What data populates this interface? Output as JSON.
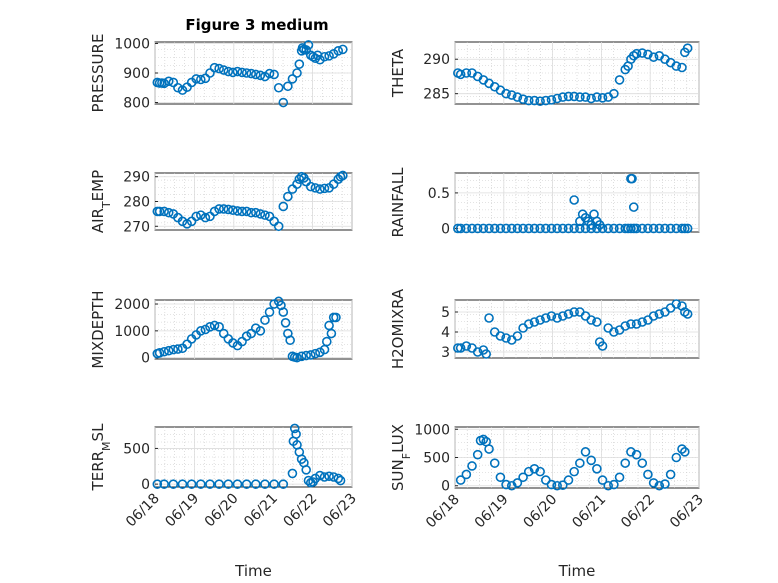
{
  "figure": {
    "title": "Figure 3 medium"
  },
  "chart_data": [
    {
      "type": "scatter",
      "ylabel": "PRESSURE",
      "ylim": [
        795,
        1005
      ],
      "yticks": [
        800,
        900,
        1000
      ],
      "ytick_labels": [
        "800",
        "900",
        "1000"
      ],
      "xlim": [
        0,
        4.3
      ],
      "xtick_labels": [],
      "x": [
        0.05,
        0.1,
        0.15,
        0.2,
        0.3,
        0.4,
        0.5,
        0.6,
        0.7,
        0.8,
        0.9,
        1.0,
        1.1,
        1.2,
        1.3,
        1.4,
        1.5,
        1.6,
        1.7,
        1.8,
        1.9,
        2.0,
        2.1,
        2.2,
        2.3,
        2.4,
        2.5,
        2.6,
        2.7,
        2.8,
        2.9,
        3.0,
        3.1,
        3.15,
        3.2,
        3.22,
        3.25,
        3.3,
        3.35,
        3.4,
        3.45,
        3.5,
        3.55,
        3.6,
        3.7,
        3.8,
        3.9,
        4.0,
        4.1
      ],
      "y": [
        868,
        866,
        866,
        865,
        872,
        868,
        850,
        842,
        852,
        868,
        880,
        878,
        882,
        900,
        918,
        915,
        910,
        905,
        902,
        905,
        902,
        900,
        898,
        895,
        892,
        888,
        898,
        895,
        850,
        800,
        855,
        880,
        900,
        930,
        975,
        985,
        980,
        978,
        995,
        960,
        955,
        950,
        960,
        945,
        955,
        958,
        965,
        975,
        980
      ]
    },
    {
      "type": "scatter",
      "ylabel": "THETA",
      "ylim": [
        283.5,
        292.5
      ],
      "yticks": [
        285,
        290
      ],
      "ytick_labels": [
        "285",
        "290"
      ],
      "xlim": [
        0,
        4.3
      ],
      "xtick_labels": [],
      "x": [
        0.05,
        0.1,
        0.2,
        0.3,
        0.4,
        0.5,
        0.6,
        0.7,
        0.8,
        0.9,
        1.0,
        1.1,
        1.2,
        1.3,
        1.4,
        1.5,
        1.6,
        1.7,
        1.8,
        1.9,
        2.0,
        2.1,
        2.2,
        2.3,
        2.4,
        2.5,
        2.6,
        2.7,
        2.8,
        2.9,
        3.0,
        3.05,
        3.1,
        3.15,
        3.2,
        3.3,
        3.4,
        3.5,
        3.6,
        3.7,
        3.8,
        3.9,
        4.0,
        4.05,
        4.1
      ],
      "y": [
        288,
        287.8,
        288,
        288,
        287.5,
        287,
        286.5,
        286,
        285.5,
        285,
        284.8,
        284.5,
        284.2,
        284,
        284,
        283.9,
        284,
        284.1,
        284.3,
        284.5,
        284.6,
        284.6,
        284.5,
        284.5,
        284.3,
        284.5,
        284.4,
        284.5,
        285,
        287,
        288.5,
        289,
        290,
        290.5,
        290.8,
        290.9,
        290.7,
        290.3,
        290.5,
        290,
        289.5,
        289,
        288.8,
        291,
        291.6
      ]
    },
    {
      "type": "scatter",
      "ylabel": "AIR_TEMP",
      "ylim": [
        268.5,
        291.5
      ],
      "yticks": [
        270,
        280,
        290
      ],
      "ytick_labels": [
        "270",
        "280",
        "290"
      ],
      "xlim": [
        0,
        4.3
      ],
      "xtick_labels": [],
      "x": [
        0.05,
        0.1,
        0.2,
        0.3,
        0.4,
        0.5,
        0.6,
        0.7,
        0.8,
        0.9,
        1.0,
        1.1,
        1.2,
        1.3,
        1.4,
        1.5,
        1.6,
        1.7,
        1.8,
        1.9,
        2.0,
        2.1,
        2.2,
        2.3,
        2.4,
        2.5,
        2.6,
        2.7,
        2.8,
        2.9,
        3.0,
        3.1,
        3.15,
        3.2,
        3.25,
        3.3,
        3.4,
        3.5,
        3.6,
        3.7,
        3.8,
        3.9,
        4.0,
        4.05,
        4.1
      ],
      "y": [
        276,
        276,
        276,
        275.5,
        275,
        273.5,
        272,
        271,
        272,
        274,
        274.5,
        273.5,
        274,
        276,
        277,
        277,
        276.8,
        276.5,
        276.2,
        276,
        276,
        275.5,
        275.5,
        275,
        274.5,
        274,
        272,
        270,
        278,
        282,
        285,
        287,
        289,
        290,
        289.5,
        288,
        286,
        285.5,
        285,
        285.3,
        285.5,
        287,
        289,
        290,
        290.5
      ]
    },
    {
      "type": "scatter",
      "ylabel": "RAINFALL",
      "ylim": [
        -0.05,
        0.78
      ],
      "yticks": [
        0,
        0.5
      ],
      "ytick_labels": [
        "0",
        "0.5"
      ],
      "xlim": [
        0,
        4.3
      ],
      "xtick_labels": [],
      "x": [
        0.05,
        0.1,
        0.2,
        0.3,
        0.4,
        0.5,
        0.6,
        0.7,
        0.8,
        0.9,
        1.0,
        1.1,
        1.2,
        1.3,
        1.4,
        1.5,
        1.6,
        1.7,
        1.8,
        1.9,
        2.0,
        2.1,
        2.2,
        2.3,
        2.4,
        2.5,
        2.6,
        2.7,
        2.8,
        2.9,
        3.0,
        3.05,
        3.1,
        3.15,
        3.2,
        3.3,
        3.4,
        3.5,
        3.6,
        3.7,
        3.8,
        3.9,
        4.0,
        4.05,
        4.1,
        2.1,
        2.2,
        2.25,
        2.3,
        2.35,
        2.4,
        2.45,
        2.5,
        2.55,
        3.1,
        3.12,
        3.15
      ],
      "y": [
        0,
        0,
        0,
        0,
        0,
        0,
        0,
        0,
        0,
        0,
        0,
        0,
        0,
        0,
        0,
        0,
        0,
        0,
        0,
        0,
        0,
        0,
        0,
        0,
        0,
        0,
        0,
        0,
        0,
        0,
        0,
        0,
        0,
        0,
        0,
        0,
        0,
        0,
        0,
        0,
        0,
        0,
        0,
        0,
        0,
        0.4,
        0.1,
        0.2,
        0.15,
        0.1,
        0.05,
        0.2,
        0.1,
        0.05,
        0.7,
        0.7,
        0.3
      ]
    },
    {
      "type": "scatter",
      "ylabel": "MIXDEPTH",
      "ylim": [
        -50,
        2150
      ],
      "yticks": [
        0,
        1000,
        2000
      ],
      "ytick_labels": [
        "0",
        "1000",
        "2000"
      ],
      "xlim": [
        0,
        4.3
      ],
      "xtick_labels": [],
      "x": [
        0.05,
        0.1,
        0.2,
        0.3,
        0.4,
        0.5,
        0.6,
        0.7,
        0.8,
        0.9,
        1.0,
        1.1,
        1.2,
        1.3,
        1.4,
        1.5,
        1.6,
        1.7,
        1.8,
        1.9,
        2.0,
        2.1,
        2.2,
        2.3,
        2.4,
        2.5,
        2.6,
        2.7,
        2.75,
        2.8,
        2.85,
        2.9,
        2.95,
        3.0,
        3.05,
        3.1,
        3.2,
        3.3,
        3.4,
        3.5,
        3.6,
        3.7,
        3.75,
        3.8,
        3.85,
        3.9,
        3.95
      ],
      "y": [
        150,
        180,
        220,
        260,
        300,
        320,
        350,
        500,
        700,
        850,
        1000,
        1050,
        1150,
        1200,
        1150,
        900,
        700,
        550,
        450,
        600,
        800,
        900,
        1100,
        1000,
        1400,
        1700,
        2000,
        2100,
        1950,
        1700,
        1300,
        900,
        650,
        50,
        20,
        0,
        50,
        80,
        100,
        150,
        200,
        300,
        600,
        1200,
        900,
        1500,
        1500
      ]
    },
    {
      "type": "scatter",
      "ylabel": "H2OMIXRA",
      "ylim": [
        2.7,
        5.6
      ],
      "yticks": [
        3,
        4,
        5
      ],
      "ytick_labels": [
        "3",
        "4",
        "5"
      ],
      "xlim": [
        0,
        4.3
      ],
      "xtick_labels": [],
      "x": [
        0.05,
        0.1,
        0.2,
        0.3,
        0.4,
        0.5,
        0.55,
        0.6,
        0.7,
        0.8,
        0.9,
        1.0,
        1.1,
        1.2,
        1.3,
        1.4,
        1.5,
        1.6,
        1.7,
        1.8,
        1.9,
        2.0,
        2.1,
        2.2,
        2.3,
        2.4,
        2.5,
        2.55,
        2.6,
        2.7,
        2.8,
        2.9,
        3.0,
        3.1,
        3.2,
        3.3,
        3.4,
        3.5,
        3.6,
        3.7,
        3.8,
        3.9,
        4.0,
        4.05,
        4.1
      ],
      "y": [
        3.2,
        3.2,
        3.3,
        3.2,
        3.0,
        3.1,
        2.9,
        4.7,
        4.0,
        3.8,
        3.7,
        3.6,
        3.8,
        4.2,
        4.4,
        4.5,
        4.6,
        4.7,
        4.8,
        4.7,
        4.8,
        4.9,
        5.0,
        5.0,
        4.8,
        4.6,
        4.5,
        3.5,
        3.3,
        4.2,
        4.0,
        4.1,
        4.3,
        4.4,
        4.4,
        4.5,
        4.6,
        4.8,
        4.9,
        5.0,
        5.2,
        5.4,
        5.3,
        5.0,
        4.9
      ]
    },
    {
      "type": "scatter",
      "ylabel": "TERR_MSL",
      "ylim": [
        -40,
        800
      ],
      "yticks": [
        0,
        500
      ],
      "ytick_labels": [
        "0",
        "500"
      ],
      "xlim": [
        0,
        4.3
      ],
      "xtick_labels": [
        "06/18",
        "06/19",
        "06/20",
        "06/21",
        "06/22",
        "06/23"
      ],
      "xticks": [
        0,
        0.86,
        1.72,
        2.58,
        3.44,
        4.3
      ],
      "xlabel": "Time",
      "x": [
        0.05,
        0.2,
        0.4,
        0.6,
        0.8,
        1.0,
        1.2,
        1.4,
        1.6,
        1.8,
        2.0,
        2.2,
        2.4,
        2.6,
        2.8,
        3.0,
        3.02,
        3.05,
        3.08,
        3.1,
        3.15,
        3.2,
        3.25,
        3.3,
        3.35,
        3.4,
        3.45,
        3.5,
        3.6,
        3.7,
        3.8,
        3.9,
        4.0,
        4.05
      ],
      "y": [
        0,
        0,
        0,
        0,
        0,
        0,
        0,
        0,
        0,
        0,
        0,
        0,
        0,
        0,
        0,
        150,
        600,
        780,
        700,
        550,
        450,
        350,
        300,
        200,
        50,
        20,
        30,
        80,
        120,
        100,
        110,
        100,
        80,
        50
      ]
    },
    {
      "type": "scatter",
      "ylabel": "SUN_FLUX",
      "ylim": [
        -40,
        1040
      ],
      "yticks": [
        0,
        500,
        1000
      ],
      "ytick_labels": [
        "0",
        "500",
        "1000"
      ],
      "xlim": [
        0,
        4.3
      ],
      "xtick_labels": [
        "06/18",
        "06/19",
        "06/20",
        "06/21",
        "06/22",
        "06/23"
      ],
      "xticks": [
        0,
        0.86,
        1.72,
        2.58,
        3.44,
        4.3
      ],
      "xlabel": "Time",
      "x": [
        0.1,
        0.2,
        0.3,
        0.4,
        0.45,
        0.5,
        0.55,
        0.6,
        0.7,
        0.8,
        0.9,
        1.0,
        1.1,
        1.2,
        1.3,
        1.4,
        1.5,
        1.6,
        1.7,
        1.8,
        1.9,
        2.0,
        2.1,
        2.2,
        2.3,
        2.4,
        2.5,
        2.6,
        2.7,
        2.8,
        2.9,
        3.0,
        3.1,
        3.2,
        3.3,
        3.4,
        3.5,
        3.6,
        3.7,
        3.8,
        3.9,
        4.0,
        4.05
      ],
      "y": [
        100,
        200,
        350,
        550,
        800,
        820,
        780,
        650,
        400,
        150,
        20,
        0,
        50,
        150,
        250,
        300,
        250,
        100,
        20,
        0,
        10,
        100,
        250,
        400,
        600,
        450,
        300,
        100,
        0,
        20,
        150,
        400,
        600,
        550,
        400,
        200,
        50,
        0,
        30,
        200,
        500,
        650,
        600
      ]
    }
  ]
}
